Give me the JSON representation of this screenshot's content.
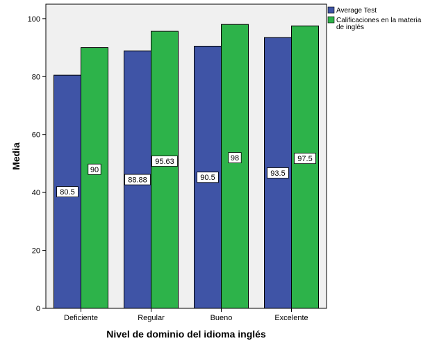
{
  "chart_data": {
    "type": "bar",
    "xlabel": "Nivel de dominio del idioma inglés",
    "ylabel": "Media",
    "ylim": [
      0,
      100
    ],
    "yticks": [
      0,
      20,
      40,
      60,
      80,
      100
    ],
    "categories": [
      "Deficiente",
      "Regular",
      "Bueno",
      "Excelente"
    ],
    "series": [
      {
        "name": "Average Test",
        "color": "#3f54a6",
        "values": [
          80.5,
          88.88,
          90.5,
          93.5
        ],
        "labels": [
          "80.5",
          "88.88",
          "90.5",
          "93.5"
        ]
      },
      {
        "name": "Calificaciones en la materia de inglés",
        "legend_lines": [
          "Calificaciones en la materia",
          "de inglés"
        ],
        "color": "#2db34a",
        "values": [
          90,
          95.63,
          98,
          97.5
        ],
        "labels": [
          "90",
          "95.63",
          "98",
          "97.5"
        ]
      }
    ],
    "legend": "top-right",
    "plot_background": "#f0f0f0"
  }
}
